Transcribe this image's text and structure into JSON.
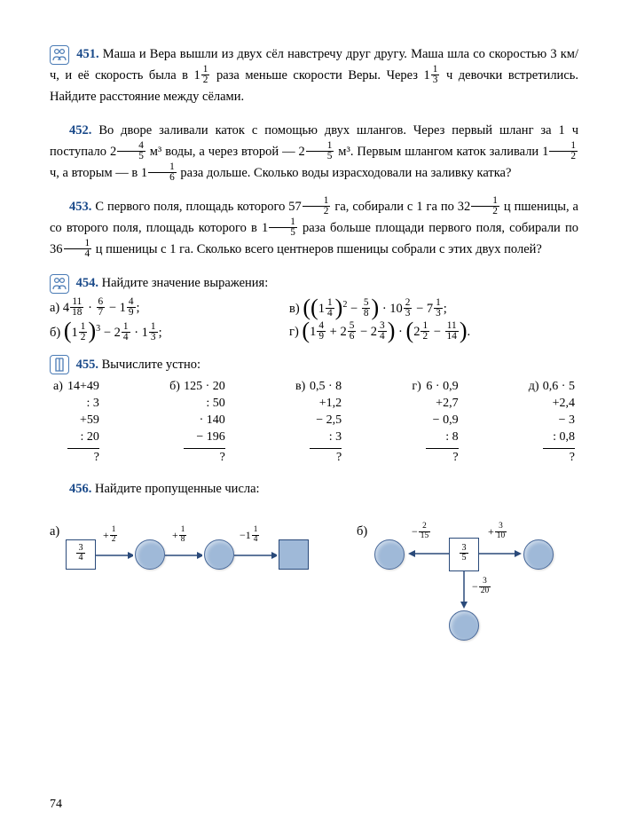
{
  "page_number": "74",
  "icons": {
    "people": "people-icon",
    "column": "column-icon"
  },
  "p451": {
    "num": "451.",
    "text_a": "Маша и Вера вышли из двух сёл навстречу друг другу. Маша шла со скоростью 3 км/ч, и её скорость была в ",
    "f1_whole": "1",
    "f1_n": "1",
    "f1_d": "2",
    "text_b": " раза меньше скорости Веры. Через ",
    "f2_whole": "1",
    "f2_n": "1",
    "f2_d": "3",
    "text_c": " ч девочки встретились. Найдите расстояние между сёлами."
  },
  "p452": {
    "num": "452.",
    "text_a": "Во дворе заливали каток с помощью двух шлангов. Через первый шланг за 1 ч поступало ",
    "f1_whole": "2",
    "f1_n": "4",
    "f1_d": "5",
    "text_b": " м³ воды, а через второй — ",
    "f2_whole": "2",
    "f2_n": "1",
    "f2_d": "5",
    "text_c": " м³. Первым шлангом каток заливали ",
    "f3_whole": "1",
    "f3_n": "1",
    "f3_d": "2",
    "text_d": " ч, а вторым — в ",
    "f4_whole": "1",
    "f4_n": "1",
    "f4_d": "6",
    "text_e": " раза дольше. Сколько воды израсходовали на заливку катка?"
  },
  "p453": {
    "num": "453.",
    "text_a": "С первого поля, площадь которого ",
    "f1_whole": "57",
    "f1_n": "1",
    "f1_d": "2",
    "text_b": " га, собирали с 1 га по ",
    "f2_whole": "32",
    "f2_n": "1",
    "f2_d": "2",
    "text_c": " ц пшеницы, а со второго поля, площадь которого в ",
    "f3_whole": "1",
    "f3_n": "1",
    "f3_d": "5",
    "text_d": " раза больше площади первого поля, собирали по ",
    "f4_whole": "36",
    "f4_n": "1",
    "f4_d": "4",
    "text_e": " ц пшеницы с 1 га. Сколько всего центнеров пшеницы собрали с этих двух полей?"
  },
  "p454": {
    "num": "454.",
    "title": "Найдите значение выражения:",
    "a": {
      "label": "а)",
      "w1": "4",
      "n1": "11",
      "d1": "18",
      "n2": "6",
      "d2": "7",
      "w3": "1",
      "n3": "4",
      "d3": "9"
    },
    "v": {
      "label": "в)",
      "w1": "1",
      "n1": "1",
      "d1": "4",
      "pow": "2",
      "n2": "5",
      "d2": "8",
      "w3": "10",
      "n3": "2",
      "d3": "3",
      "w4": "7",
      "n4": "1",
      "d4": "3"
    },
    "b": {
      "label": "б)",
      "w1": "1",
      "n1": "1",
      "d1": "2",
      "pow": "3",
      "w2": "2",
      "n2": "1",
      "d2": "4",
      "w3": "1",
      "n3": "1",
      "d3": "3"
    },
    "g": {
      "label": "г)",
      "w1": "1",
      "n1": "4",
      "d1": "9",
      "w2": "2",
      "n2": "5",
      "d2": "6",
      "w3": "2",
      "n3": "3",
      "d3": "4",
      "w4": "2",
      "n4": "1",
      "d4": "2",
      "n5": "11",
      "d5": "14"
    }
  },
  "p455": {
    "num": "455.",
    "title": "Вычислите устно:",
    "cols": [
      {
        "label": "а)",
        "rows": [
          "14+49",
          ": 3",
          "+59",
          ": 20"
        ],
        "q": "?"
      },
      {
        "label": "б)",
        "rows": [
          "125 · 20",
          ": 50",
          "· 140",
          "− 196"
        ],
        "q": "?"
      },
      {
        "label": "в)",
        "rows": [
          "0,5 · 8",
          "+1,2",
          "− 2,5",
          ": 3"
        ],
        "q": "?"
      },
      {
        "label": "г)",
        "rows": [
          "6 · 0,9",
          "+2,7",
          "− 0,9",
          ": 8"
        ],
        "q": "?"
      },
      {
        "label": "д)",
        "rows": [
          "0,6 · 5",
          "+2,4",
          "− 3",
          ": 0,8"
        ],
        "q": "?"
      }
    ]
  },
  "p456": {
    "num": "456.",
    "title": "Найдите пропущенные числа:",
    "a_label": "а)",
    "b_label": "б)",
    "a": {
      "start_n": "3",
      "start_d": "4",
      "e1_n": "1",
      "e1_d": "2",
      "e1_op": "+",
      "e2_n": "1",
      "e2_d": "8",
      "e2_op": "+",
      "e3_w": "1",
      "e3_n": "1",
      "e3_d": "4",
      "e3_op": "−"
    },
    "b": {
      "center_n": "3",
      "center_d": "5",
      "left_n": "2",
      "left_d": "15",
      "left_op": "−",
      "right_n": "3",
      "right_d": "10",
      "right_op": "+",
      "down_n": "3",
      "down_d": "20",
      "down_op": "−"
    }
  }
}
